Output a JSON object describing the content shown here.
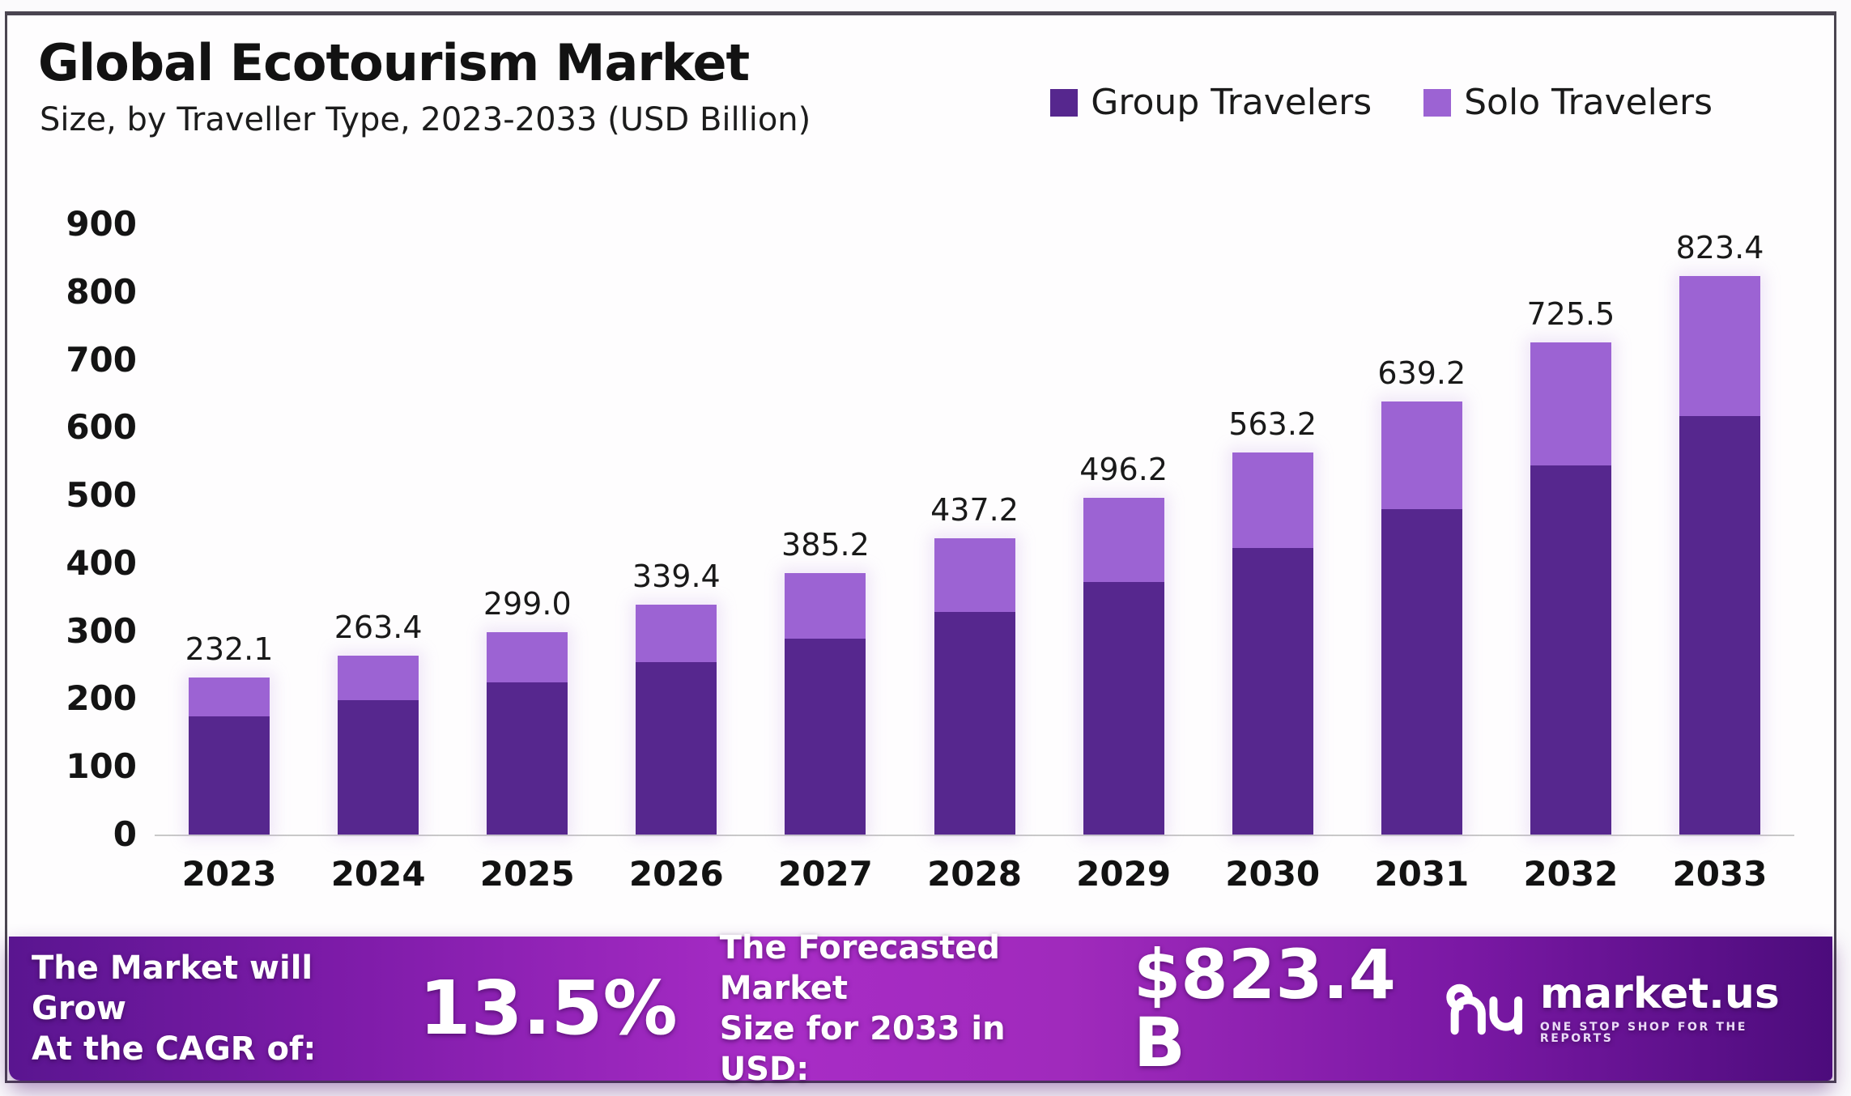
{
  "header": {
    "title": "Global Ecotourism Market",
    "subtitle": "Size, by Traveller Type, 2023-2033 (USD Billion)"
  },
  "legend": [
    {
      "label": "Group Travelers",
      "color": "#56278e"
    },
    {
      "label": "Solo Travelers",
      "color": "#9c63d3"
    }
  ],
  "chart_data": {
    "type": "bar",
    "subtype": "stacked",
    "title": "Global Ecotourism Market Size, by Traveller Type, 2023-2033",
    "xlabel": "",
    "ylabel": "USD Billion",
    "categories": [
      "2023",
      "2024",
      "2025",
      "2026",
      "2027",
      "2028",
      "2029",
      "2030",
      "2031",
      "2032",
      "2033"
    ],
    "series": [
      {
        "name": "Group Travelers",
        "color": "#56278e",
        "values": [
          174.1,
          197.6,
          224.3,
          254.6,
          288.9,
          327.9,
          372.2,
          422.4,
          479.4,
          544.1,
          617.6
        ]
      },
      {
        "name": "Solo Travelers",
        "color": "#9c63d3",
        "values": [
          58.0,
          65.8,
          74.7,
          84.8,
          96.3,
          109.3,
          124.0,
          140.8,
          159.8,
          181.4,
          205.8
        ]
      }
    ],
    "totals": [
      232.1,
      263.4,
      299.0,
      339.4,
      385.2,
      437.2,
      496.2,
      563.2,
      639.2,
      725.5,
      823.4
    ],
    "ylim": [
      0,
      900
    ],
    "yticks": [
      0,
      100,
      200,
      300,
      400,
      500,
      600,
      700,
      800,
      900
    ],
    "grid": false,
    "legend_position": "top-right"
  },
  "footer": {
    "cagr_label_line1": "The Market will Grow",
    "cagr_label_line2": "At the CAGR of:",
    "cagr_value": "13.5%",
    "forecast_label_line1": "The Forecasted Market",
    "forecast_label_line2": "Size for 2033 in USD:",
    "forecast_value": "$823.4 B",
    "brand": "market.us",
    "brand_tagline": "ONE STOP SHOP FOR THE REPORTS"
  }
}
